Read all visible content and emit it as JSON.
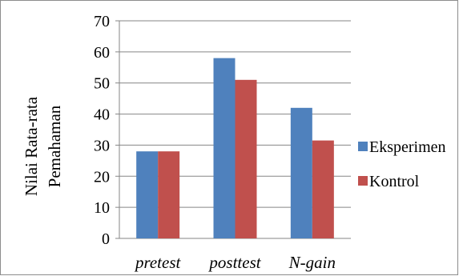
{
  "chart_data": {
    "type": "bar",
    "title": "",
    "xlabel": "",
    "ylabel": [
      "Nilai Rata-rata",
      "Pemahaman"
    ],
    "categories": [
      "pretest",
      "posttest",
      "N-gain"
    ],
    "series": [
      {
        "name": "Eksperimen",
        "color": "#4f81bd",
        "values": [
          28,
          58,
          42
        ]
      },
      {
        "name": "Kontrol",
        "color": "#c0504d",
        "values": [
          28,
          51,
          31.5
        ]
      }
    ],
    "ylim": [
      0,
      70
    ],
    "yticks": [
      0,
      10,
      20,
      30,
      40,
      50,
      60,
      70
    ],
    "grid": "horizontal",
    "legend_position": "right"
  }
}
